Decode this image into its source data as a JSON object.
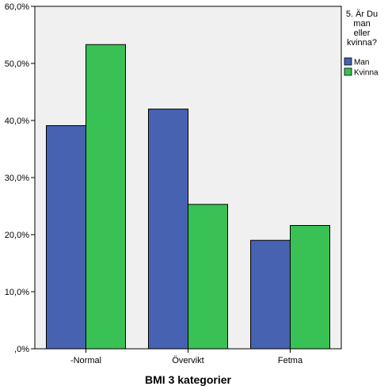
{
  "chart_data": {
    "type": "bar",
    "title": "",
    "xlabel": "BMI 3 kategorier",
    "ylabel": "",
    "categories": [
      "-Normal",
      "Övervikt",
      "Fetma"
    ],
    "series": [
      {
        "name": "Man",
        "values": [
          39.1,
          42.0,
          19.0
        ],
        "color": "#4662b1"
      },
      {
        "name": "Kvinna",
        "values": [
          53.3,
          25.3,
          21.6
        ],
        "color": "#39c155"
      }
    ],
    "ylim": [
      0,
      60
    ],
    "yticks": [
      0,
      10,
      20,
      30,
      40,
      50,
      60
    ],
    "ytick_labels": [
      ",0%",
      "10,0%",
      "20,0%",
      "30,0%",
      "40,0%",
      "50,0%",
      "60,0%"
    ],
    "legend": {
      "title_lines": [
        "5. Är Du",
        "man",
        "eller",
        "kvinna?"
      ],
      "placement": "right"
    },
    "grid": false,
    "plot_background": "#f0f0f0"
  }
}
